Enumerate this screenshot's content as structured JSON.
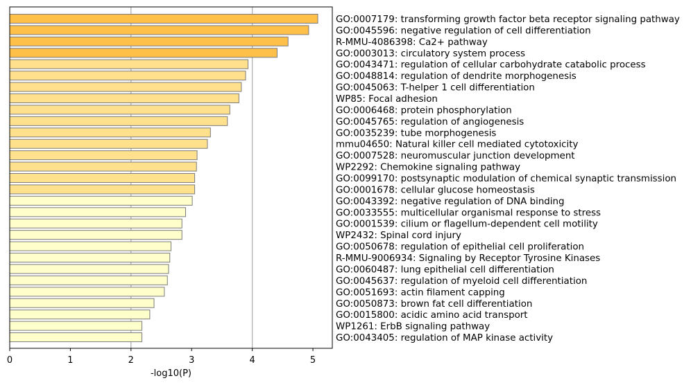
{
  "chart_data": {
    "type": "bar",
    "orientation": "horizontal",
    "xlabel": "-log10(P)",
    "xlim": [
      0,
      5.32
    ],
    "xticks": [
      "0",
      "1",
      "2",
      "3",
      "4",
      "5"
    ],
    "gridlines_at": [
      2,
      4
    ],
    "grid": "vertical lines at x=2 and x=4",
    "labels_position": "right of axes",
    "colors": {
      "dark": "#ffc04a",
      "mid": "#ffe08c",
      "light": "#ffffcc",
      "edge": "#7a7a7a",
      "grid": "#b0b0b0"
    },
    "categories": [
      "GO:0007179: transforming growth factor beta receptor signaling pathway",
      "GO:0045596: negative regulation of cell differentiation",
      "R-MMU-4086398: Ca2+ pathway",
      "GO:0003013: circulatory system process",
      "GO:0043471: regulation of cellular carbohydrate catabolic process",
      "GO:0048814: regulation of dendrite morphogenesis",
      "GO:0045063: T-helper 1 cell differentiation",
      "WP85: Focal adhesion",
      "GO:0006468: protein phosphorylation",
      "GO:0045765: regulation of angiogenesis",
      "GO:0035239: tube morphogenesis",
      "mmu04650: Natural killer cell mediated cytotoxicity",
      "GO:0007528: neuromuscular junction development",
      "WP2292: Chemokine signaling pathway",
      "GO:0099170: postsynaptic modulation of chemical synaptic transmission",
      "GO:0001678: cellular glucose homeostasis",
      "GO:0043392: negative regulation of DNA binding",
      "GO:0033555: multicellular organismal response to stress",
      "GO:0001539: cilium or flagellum-dependent cell motility",
      "WP2432: Spinal cord injury",
      "GO:0050678: regulation of epithelial cell proliferation",
      "R-MMU-9006934: Signaling by Receptor Tyrosine Kinases",
      "GO:0060487: lung epithelial cell differentiation",
      "GO:0045637: regulation of myeloid cell differentiation",
      "GO:0051693: actin filament capping",
      "GO:0050873: brown fat cell differentiation",
      "GO:0015800: acidic amino acid transport",
      "WP1261: ErbB signaling pathway",
      "GO:0043405: regulation of MAP kinase activity"
    ],
    "values": [
      5.08,
      4.93,
      4.59,
      4.41,
      3.93,
      3.89,
      3.82,
      3.78,
      3.63,
      3.59,
      3.31,
      3.26,
      3.09,
      3.08,
      3.05,
      3.05,
      3.01,
      2.9,
      2.84,
      2.84,
      2.66,
      2.64,
      2.62,
      2.6,
      2.55,
      2.38,
      2.31,
      2.18,
      2.18
    ],
    "color_groups": [
      "dark",
      "dark",
      "dark",
      "dark",
      "mid",
      "mid",
      "mid",
      "mid",
      "mid",
      "mid",
      "mid",
      "mid",
      "mid",
      "mid",
      "mid",
      "mid",
      "light",
      "light",
      "light",
      "light",
      "light",
      "light",
      "light",
      "light",
      "light",
      "light",
      "light",
      "light",
      "light"
    ]
  }
}
